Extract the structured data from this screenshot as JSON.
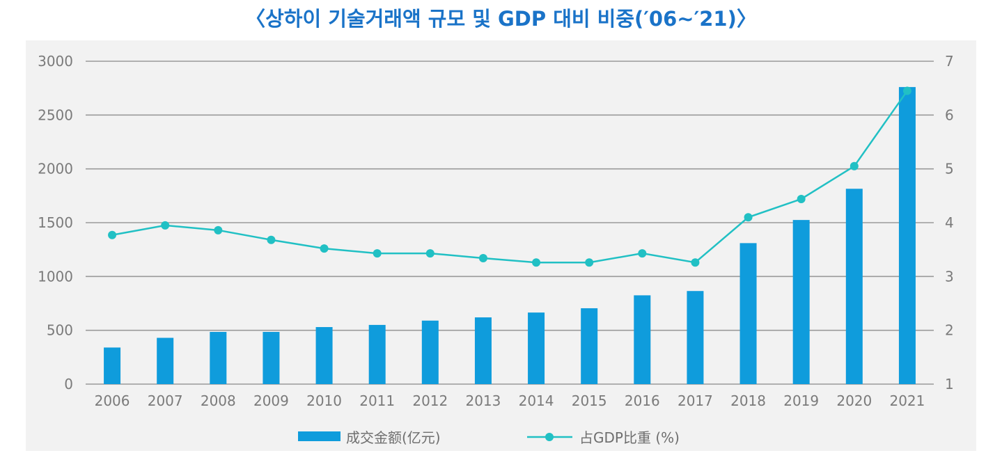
{
  "title": "〈상하이 기술거래액 규모 및 GDP 대비 비중(′06~′21)〉",
  "colors": {
    "bar": "#0f9cdc",
    "line": "#21c0c4",
    "grid": "#9a9a9a",
    "text": "#7a7a7a",
    "title": "#1a73c8"
  },
  "chart_data": {
    "type": "bar",
    "categories": [
      "2006",
      "2007",
      "2008",
      "2009",
      "2010",
      "2011",
      "2012",
      "2013",
      "2014",
      "2015",
      "2016",
      "2017",
      "2018",
      "2019",
      "2020",
      "2021"
    ],
    "y_left": {
      "ticks": [
        "0",
        "500",
        "1000",
        "1500",
        "2000",
        "2500",
        "3000"
      ],
      "ylim": [
        0,
        3000
      ]
    },
    "y_right": {
      "ticks": [
        "1",
        "2",
        "3",
        "4",
        "5",
        "6",
        "7"
      ],
      "ylim": [
        1,
        7
      ]
    },
    "grid": true,
    "legend_position": "bottom-center",
    "series": [
      {
        "name": "成交金额(亿元)",
        "type": "bar",
        "axis": "left",
        "values": [
          340,
          430,
          485,
          485,
          530,
          550,
          590,
          620,
          665,
          705,
          825,
          865,
          1310,
          1525,
          1815,
          2760
        ]
      },
      {
        "name": "占GDP比重 (%)",
        "type": "line",
        "axis": "right",
        "values": [
          3.77,
          3.95,
          3.86,
          3.68,
          3.52,
          3.43,
          3.43,
          3.34,
          3.26,
          3.26,
          3.43,
          3.26,
          4.1,
          4.44,
          5.05,
          6.45
        ]
      }
    ]
  }
}
